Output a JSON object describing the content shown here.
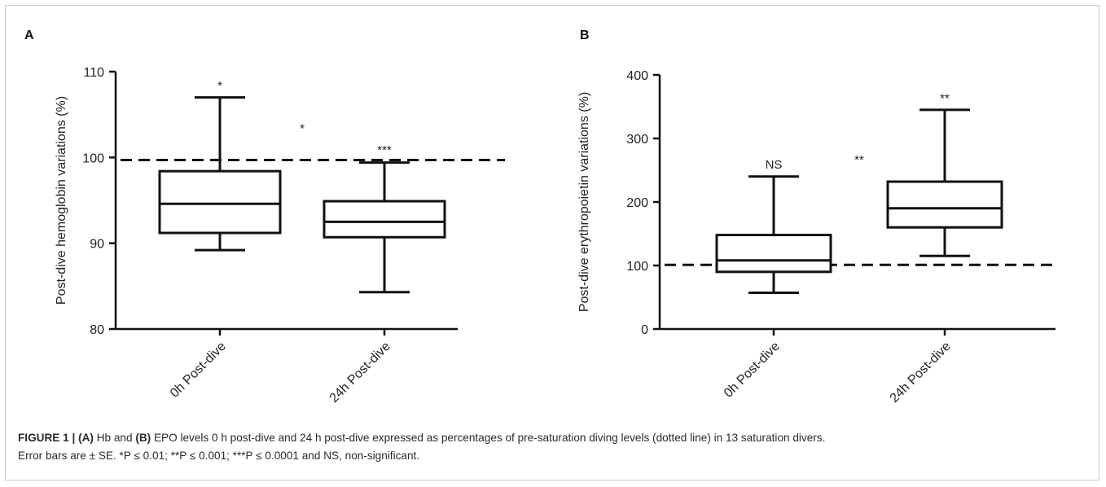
{
  "chart_data": [
    {
      "type": "box",
      "panel_label": "A",
      "ylabel": "Post-dive hemoglobin variations (%)",
      "ylim": [
        80,
        110
      ],
      "yticks": [
        80,
        90,
        100,
        110
      ],
      "categories": [
        "0h Post-dive",
        "24h Post-dive"
      ],
      "boxes": [
        {
          "min": 89.2,
          "q1": 91.2,
          "median": 94.6,
          "q3": 98.4,
          "max": 107.0
        },
        {
          "min": 84.3,
          "q1": 90.7,
          "median": 92.5,
          "q3": 94.9,
          "max": 99.4
        }
      ],
      "reference_line": 99.7,
      "significance": [
        {
          "text": "*",
          "category_index": 0,
          "y": 108.5
        },
        {
          "text": "***",
          "category_index": 1,
          "y": 101.0
        },
        {
          "text": "*",
          "between": true,
          "y": 103.5
        }
      ]
    },
    {
      "type": "box",
      "panel_label": "B",
      "ylabel": "Post-dive erythropoietin variations (%)",
      "ylim": [
        0,
        400
      ],
      "yticks": [
        0,
        100,
        200,
        300,
        400
      ],
      "categories": [
        "0h Post-dive",
        "24h Post-dive"
      ],
      "boxes": [
        {
          "min": 57,
          "q1": 90,
          "median": 108,
          "q3": 148,
          "max": 240
        },
        {
          "min": 115,
          "q1": 160,
          "median": 190,
          "q3": 232,
          "max": 345
        }
      ],
      "reference_line": 101,
      "significance": [
        {
          "text": "NS",
          "category_index": 0,
          "y": 260
        },
        {
          "text": "**",
          "category_index": 1,
          "y": 365
        },
        {
          "text": "**",
          "between": true,
          "y": 268
        }
      ]
    }
  ],
  "caption": {
    "figure_label": "FIGURE 1 |",
    "a": "(A)",
    "part1": " Hb and ",
    "b": "(B)",
    "part2": " EPO levels 0 h post-dive and 24 h post-dive expressed as percentages of pre-saturation diving levels (dotted line) in 13 saturation divers.",
    "line2": "Error bars are ± SE. *P ≤ 0.01; **P ≤ 0.001; ***P ≤ 0.0001 and NS, non-significant."
  }
}
